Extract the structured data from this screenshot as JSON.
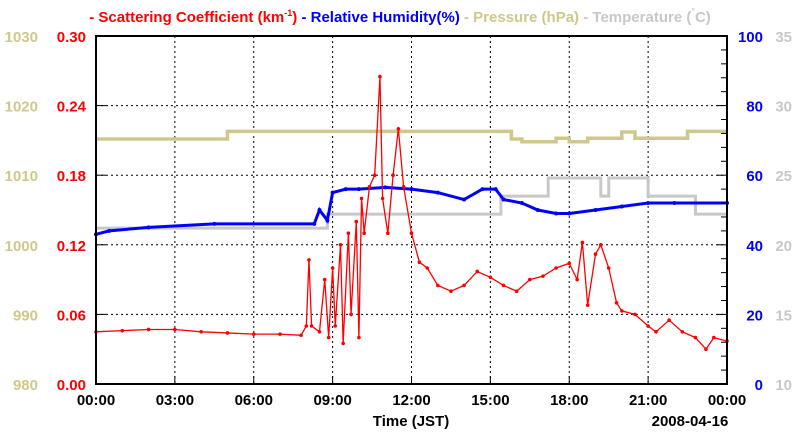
{
  "chart_data": {
    "type": "line",
    "legend": {
      "scatter": "Scattering Coefficient (km",
      "scatter_sup": "-1",
      "scatter_end": ")",
      "humidity": "Relative Humidity(%)",
      "pressure": "Pressure (hPa)",
      "temperature": "Temperature (",
      "temperature_deg": "°",
      "temperature_end": "C)",
      "dash": "-"
    },
    "xlabel": "Time (JST)",
    "date": "2008-04-16",
    "xlim": [
      0,
      24
    ],
    "x_ticks": [
      "00:00",
      "03:00",
      "06:00",
      "09:00",
      "12:00",
      "15:00",
      "18:00",
      "21:00",
      "00:00"
    ],
    "colors": {
      "scatter": "#ff0000",
      "humidity": "#0000ff",
      "pressure": "#cfc88a",
      "temperature": "#c8c8c8"
    },
    "axes": {
      "pressure": {
        "range": [
          980,
          1030
        ],
        "ticks": [
          "980",
          "990",
          "1000",
          "1010",
          "1020",
          "1030"
        ]
      },
      "scatter": {
        "range": [
          0,
          0.3
        ],
        "ticks": [
          "0.00",
          "0.06",
          "0.12",
          "0.18",
          "0.24",
          "0.30"
        ]
      },
      "humidity": {
        "range": [
          0,
          100
        ],
        "ticks": [
          "0",
          "20",
          "40",
          "60",
          "80",
          "100"
        ]
      },
      "temperature": {
        "range": [
          10,
          35
        ],
        "ticks": [
          "10",
          "15",
          "20",
          "25",
          "30",
          "35"
        ]
      }
    },
    "grid": true,
    "series": [
      {
        "name": "scatter",
        "x": [
          0,
          1,
          2,
          3,
          4,
          5,
          6,
          7,
          7.8,
          8.0,
          8.1,
          8.2,
          8.5,
          8.7,
          8.85,
          9.0,
          9.1,
          9.3,
          9.4,
          9.6,
          9.7,
          9.9,
          10.0,
          10.1,
          10.2,
          10.4,
          10.6,
          10.8,
          10.9,
          11.1,
          11.3,
          11.5,
          11.7,
          12.0,
          12.3,
          12.6,
          13.0,
          13.5,
          14.0,
          14.5,
          15.0,
          15.5,
          16.0,
          16.5,
          17.0,
          17.5,
          18.0,
          18.3,
          18.5,
          18.7,
          19.0,
          19.2,
          19.5,
          19.8,
          20.0,
          20.5,
          21.0,
          21.3,
          21.8,
          22.3,
          22.8,
          23.2,
          23.5,
          24
        ],
        "values": [
          0.045,
          0.046,
          0.047,
          0.047,
          0.045,
          0.044,
          0.043,
          0.043,
          0.042,
          0.05,
          0.107,
          0.05,
          0.045,
          0.09,
          0.04,
          0.1,
          0.05,
          0.12,
          0.035,
          0.13,
          0.06,
          0.14,
          0.04,
          0.16,
          0.13,
          0.17,
          0.18,
          0.265,
          0.16,
          0.13,
          0.18,
          0.22,
          0.17,
          0.13,
          0.105,
          0.1,
          0.085,
          0.08,
          0.085,
          0.097,
          0.092,
          0.085,
          0.08,
          0.09,
          0.093,
          0.1,
          0.104,
          0.09,
          0.122,
          0.068,
          0.112,
          0.12,
          0.1,
          0.07,
          0.063,
          0.06,
          0.05,
          0.045,
          0.055,
          0.045,
          0.04,
          0.03,
          0.04,
          0.037
        ]
      },
      {
        "name": "humidity",
        "x": [
          0,
          0.5,
          2,
          4.5,
          8.3,
          8.5,
          8.8,
          9.0,
          9.5,
          10,
          11,
          12,
          13,
          14,
          14.7,
          15.2,
          15.5,
          16.2,
          16.8,
          17.5,
          18,
          19,
          20,
          21,
          22,
          24
        ],
        "values": [
          43,
          44,
          45,
          46,
          46,
          50,
          47,
          55,
          56,
          56,
          56.5,
          56,
          55,
          53,
          56,
          56,
          53,
          52,
          50,
          49,
          49,
          50,
          51,
          52,
          52,
          52
        ]
      },
      {
        "name": "pressure",
        "x": [
          0,
          5,
          5,
          15.8,
          15.8,
          16.2,
          16.2,
          17.5,
          17.5,
          18,
          18,
          18.7,
          18.7,
          20,
          20,
          20.5,
          20.5,
          20.7,
          20.7,
          22.5,
          22.5,
          24
        ],
        "values": [
          1015.2,
          1015.2,
          1016.3,
          1016.3,
          1015.2,
          1015.2,
          1014.8,
          1014.8,
          1015.3,
          1015.3,
          1014.8,
          1014.8,
          1015.3,
          1015.3,
          1016.2,
          1016.2,
          1015.3,
          1015.3,
          1015.3,
          1015.3,
          1016.3,
          1016.3
        ]
      },
      {
        "name": "temperature",
        "x": [
          0,
          8.8,
          8.8,
          10.8,
          10.8,
          15.4,
          15.4,
          17.2,
          17.2,
          19.2,
          19.2,
          19.5,
          19.5,
          21,
          21,
          22.8,
          22.8,
          23.5,
          23.5,
          24
        ],
        "values": [
          21.2,
          21.2,
          22.2,
          22.2,
          22.2,
          22.2,
          23.5,
          23.5,
          24.8,
          24.8,
          23.5,
          23.5,
          24.8,
          24.8,
          23.5,
          23.5,
          22.2,
          22.2,
          22.2,
          22.2
        ]
      }
    ]
  }
}
